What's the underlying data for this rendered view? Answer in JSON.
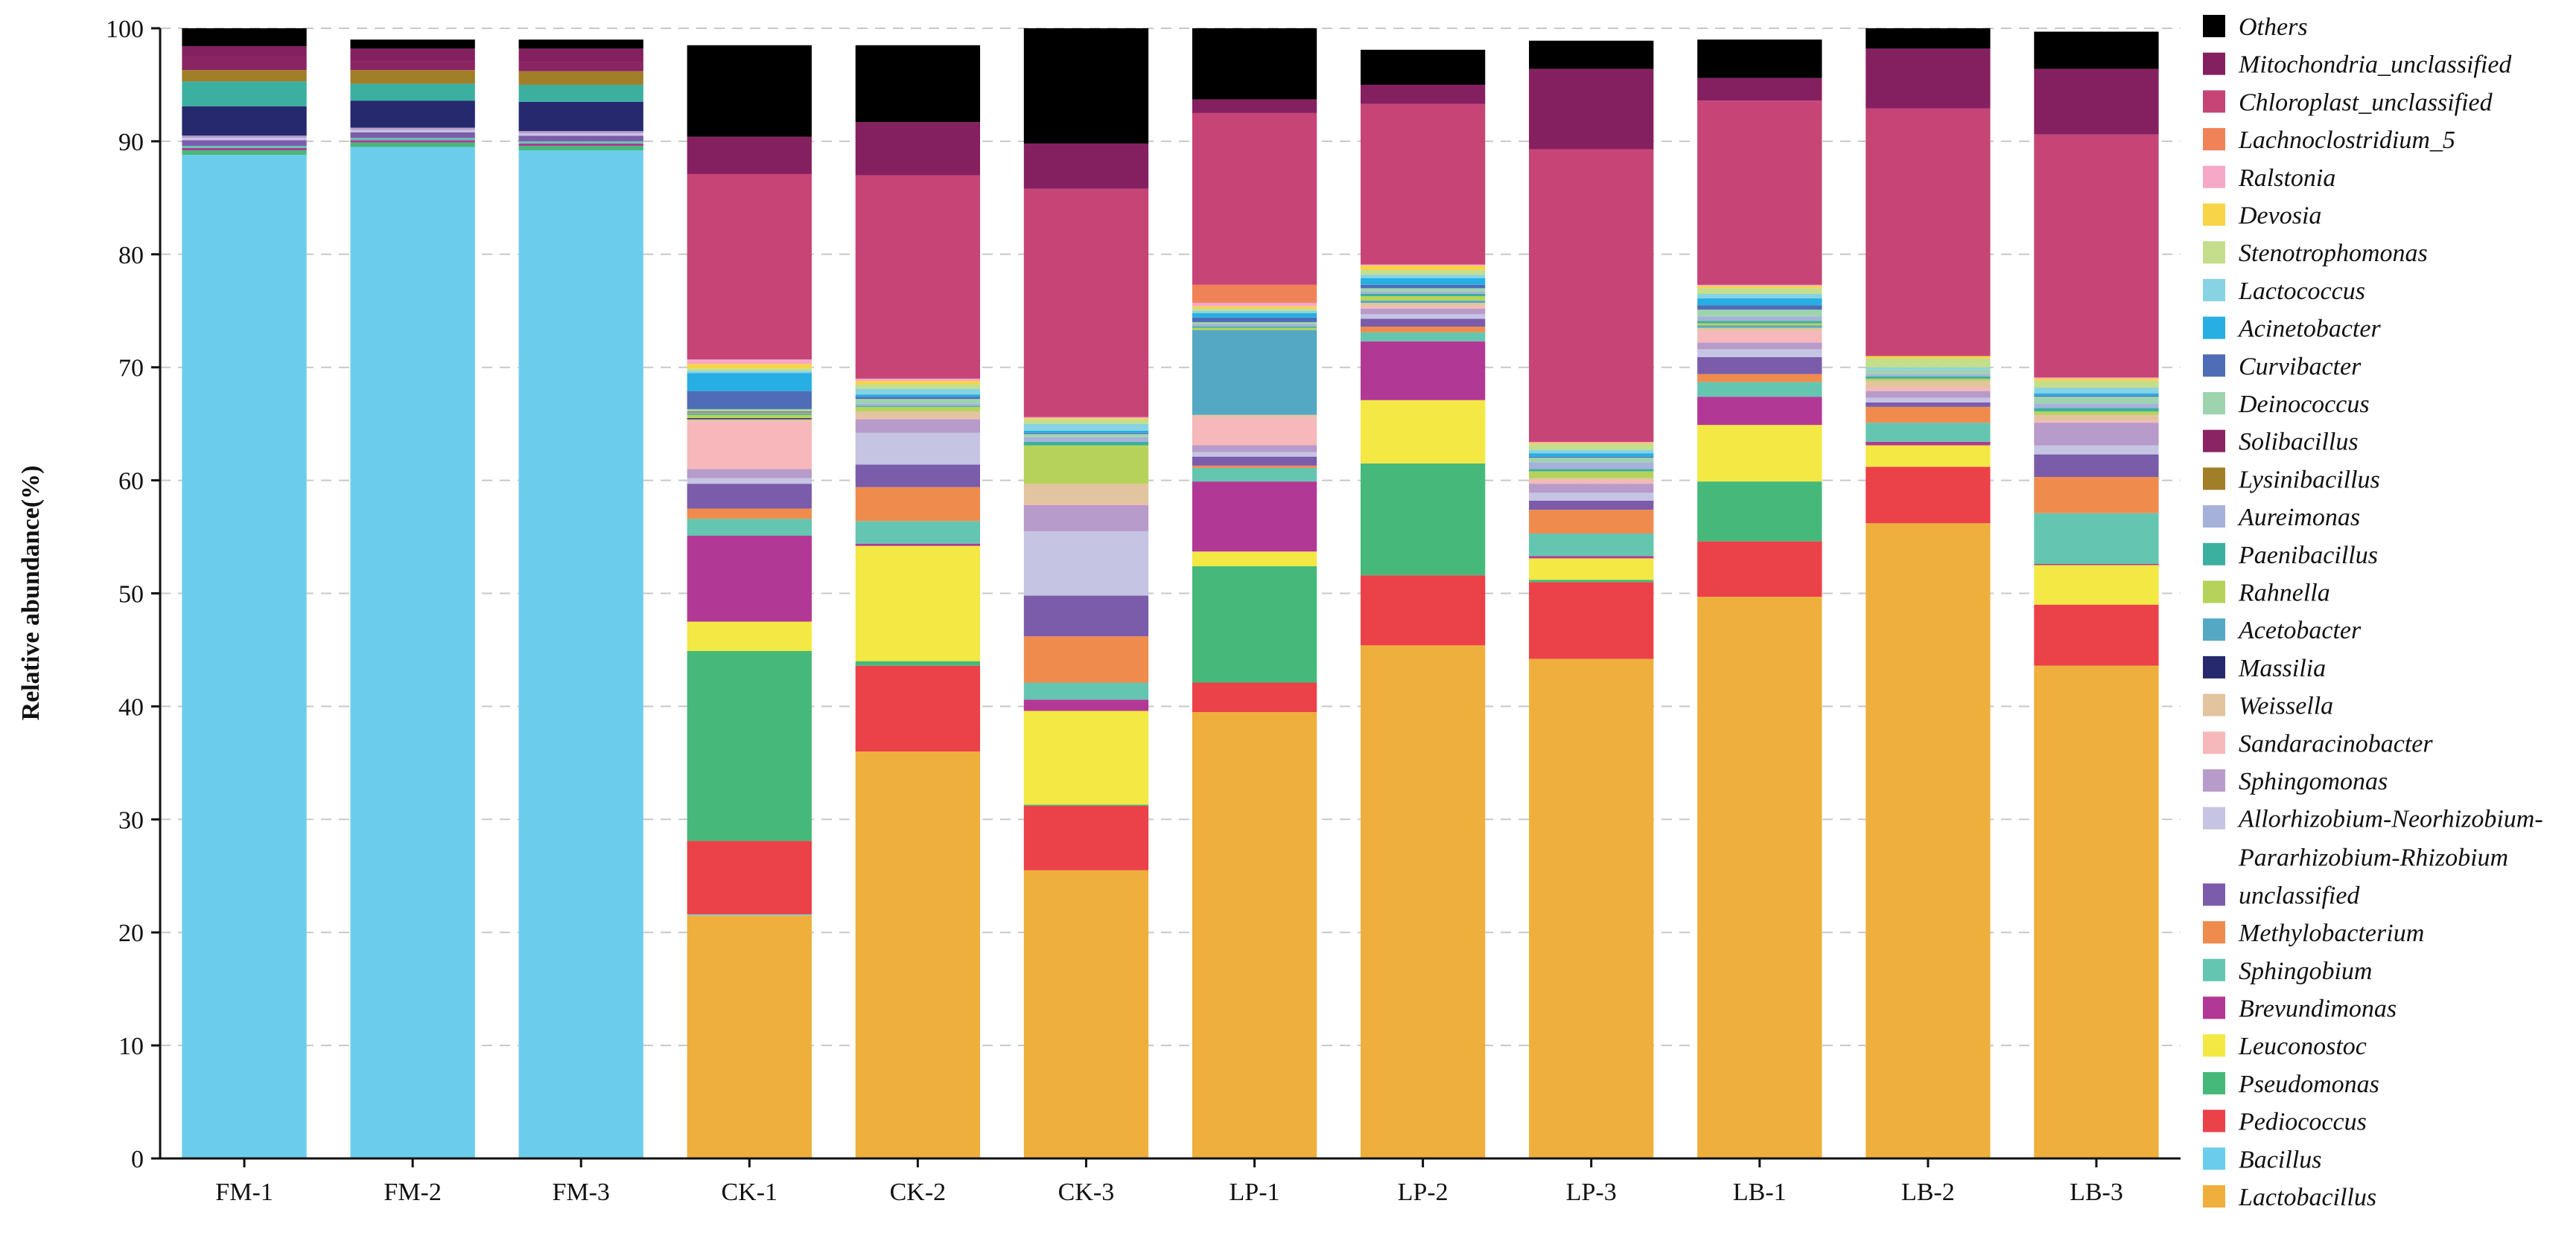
{
  "chart_data": {
    "type": "bar",
    "stacked": true,
    "title": "",
    "xlabel": "",
    "ylabel": "Relative abundance(%)",
    "ylim": [
      0,
      100
    ],
    "yticks": [
      0,
      10,
      20,
      30,
      40,
      50,
      60,
      70,
      80,
      90,
      100
    ],
    "categories": [
      "FM-1",
      "FM-2",
      "FM-3",
      "CK-1",
      "CK-2",
      "CK-3",
      "LP-1",
      "LP-2",
      "LP-3",
      "LB-1",
      "LB-2",
      "LB-3"
    ],
    "legend_position": "right",
    "series": [
      {
        "name": "Lactobacillus",
        "color": "#EEAF3C",
        "values": [
          0,
          0,
          0,
          21.5,
          36.0,
          25.5,
          39.5,
          45.4,
          44.2,
          49.7,
          56.2,
          43.6
        ]
      },
      {
        "name": "Bacillus",
        "color": "#6BCDEB",
        "values": [
          88.8,
          89.5,
          89.2,
          0.1,
          0,
          0,
          0,
          0,
          0,
          0,
          0,
          0
        ]
      },
      {
        "name": "Pediococcus",
        "color": "#EB4148",
        "values": [
          0,
          0,
          0,
          6.5,
          7.6,
          5.7,
          2.6,
          6.2,
          6.8,
          4.9,
          5.0,
          5.4
        ]
      },
      {
        "name": "Pseudomonas",
        "color": "#46B97A",
        "values": [
          0.4,
          0.4,
          0.4,
          16.8,
          0.4,
          0.1,
          10.3,
          9.9,
          0.2,
          5.3,
          0,
          0
        ]
      },
      {
        "name": "Leuconostoc",
        "color": "#F3E844",
        "values": [
          0,
          0,
          0,
          2.6,
          10.2,
          8.3,
          1.3,
          5.6,
          1.9,
          5.0,
          1.9,
          3.5
        ]
      },
      {
        "name": "Brevundimonas",
        "color": "#B23896",
        "values": [
          0.2,
          0.2,
          0.2,
          7.6,
          0.2,
          1.0,
          6.2,
          5.2,
          0.2,
          2.5,
          0.3,
          0.1
        ]
      },
      {
        "name": "Sphingobium",
        "color": "#64C6B0",
        "values": [
          0.2,
          0.2,
          0.2,
          1.5,
          2.0,
          1.5,
          1.2,
          0.8,
          2.0,
          1.3,
          1.7,
          4.5
        ]
      },
      {
        "name": "Methylobacterium",
        "color": "#F08B4E",
        "values": [
          0,
          0,
          0,
          0.9,
          3.0,
          4.1,
          0.2,
          0.5,
          2.1,
          0.7,
          1.4,
          3.2
        ]
      },
      {
        "name": "unclassified",
        "color": "#7B5CAB",
        "values": [
          0.5,
          0.5,
          0.5,
          2.2,
          2.0,
          3.6,
          0.8,
          0.7,
          0.8,
          1.5,
          0.4,
          2.0
        ]
      },
      {
        "name": "Allorhizobium-Neorhizobium-Pararhizobium-Rhizobium",
        "color": "#C6C4E3",
        "values": [
          0.2,
          0.2,
          0.2,
          0.5,
          2.8,
          5.7,
          0.4,
          0.4,
          0.7,
          0.7,
          0.4,
          0.8
        ]
      },
      {
        "name": "Sphingomonas",
        "color": "#B79BCA",
        "values": [
          0.2,
          0.2,
          0.2,
          0.8,
          1.2,
          2.3,
          0.6,
          0.5,
          0.8,
          0.6,
          0.6,
          2.0
        ]
      },
      {
        "name": "Sandaracinobacter",
        "color": "#F6B8BA",
        "values": [
          0,
          0,
          0,
          4.2,
          0.1,
          0.1,
          2.5,
          0.2,
          0.3,
          1.0,
          0.3,
          0.2
        ]
      },
      {
        "name": "Weissella",
        "color": "#E3C4A0",
        "values": [
          0,
          0,
          0,
          0.2,
          0.6,
          1.8,
          0.2,
          0.3,
          0.2,
          0.3,
          0.6,
          0.5
        ]
      },
      {
        "name": "Massilia",
        "color": "#26296E",
        "values": [
          2.6,
          2.4,
          2.6,
          0.1,
          0,
          0,
          0,
          0,
          0,
          0,
          0,
          0
        ]
      },
      {
        "name": "Acetobacter",
        "color": "#55A8C4",
        "values": [
          0,
          0,
          0,
          0,
          0,
          0,
          7.5,
          0.2,
          0,
          0.2,
          0,
          0
        ]
      },
      {
        "name": "Rahnella",
        "color": "#B5D35A",
        "values": [
          0,
          0,
          0,
          0.3,
          0.4,
          3.4,
          0.2,
          0.4,
          0.6,
          0.2,
          0.2,
          0.3
        ]
      },
      {
        "name": "Paenibacillus",
        "color": "#3BAFA0",
        "values": [
          2.2,
          1.5,
          1.5,
          0.1,
          0.1,
          0.3,
          0.1,
          0.2,
          0.2,
          0.2,
          0.2,
          0.3
        ]
      },
      {
        "name": "Aureimonas",
        "color": "#A6B1DA",
        "values": [
          0,
          0,
          0,
          0.1,
          0.2,
          0.4,
          0.2,
          0.2,
          0.6,
          0.4,
          0.2,
          0.4
        ]
      },
      {
        "name": "Lysinibacillus",
        "color": "#A17E28",
        "values": [
          1.0,
          1.2,
          1.2,
          0.1,
          0,
          0,
          0,
          0,
          0,
          0,
          0,
          0
        ]
      },
      {
        "name": "Solibacillus",
        "color": "#8A2463",
        "values": [
          1.2,
          0.8,
          0.8,
          0,
          0,
          0,
          0,
          0,
          0,
          0,
          0,
          0
        ]
      },
      {
        "name": "Deinococcus",
        "color": "#9ED4AD",
        "values": [
          0,
          0,
          0,
          0.2,
          0.4,
          0.3,
          0.2,
          0.3,
          0.4,
          0.6,
          0.4,
          0.6
        ]
      },
      {
        "name": "Curvibacter",
        "color": "#4E6DB6",
        "values": [
          0,
          0,
          0,
          1.6,
          0.2,
          0.1,
          0.4,
          0.3,
          0.1,
          0.4,
          0,
          0.1
        ]
      },
      {
        "name": "Acinetobacter",
        "color": "#27AEE3",
        "values": [
          0,
          0,
          0,
          1.6,
          0.2,
          0.2,
          0.4,
          0.6,
          0.3,
          0.6,
          0,
          0.2
        ]
      },
      {
        "name": "Lactococcus",
        "color": "#87D3E3",
        "values": [
          0,
          0,
          0,
          0.2,
          0.5,
          0.6,
          0.2,
          0.3,
          0.3,
          0.4,
          0.2,
          0.5
        ]
      },
      {
        "name": "Stenotrophomonas",
        "color": "#C4DE8C",
        "values": [
          0,
          0,
          0,
          0.2,
          0.4,
          0.4,
          0.2,
          0.4,
          0.5,
          0.5,
          0.8,
          0.6
        ]
      },
      {
        "name": "Devosia",
        "color": "#F7D448",
        "values": [
          0,
          0,
          0,
          0.4,
          0.3,
          0.1,
          0.2,
          0.4,
          0.1,
          0.2,
          0.2,
          0.2
        ]
      },
      {
        "name": "Ralstonia",
        "color": "#F5A8C8",
        "values": [
          0,
          0,
          0,
          0.4,
          0.2,
          0.1,
          0.3,
          0.1,
          0.1,
          0.1,
          0,
          0.1
        ]
      },
      {
        "name": "Lachnoclostridium_5",
        "color": "#F08258",
        "values": [
          0,
          0,
          0,
          0,
          0,
          0,
          1.6,
          0,
          0,
          0,
          0,
          0
        ]
      },
      {
        "name": "Chloroplast_unclassified",
        "color": "#C64476",
        "values": [
          0,
          0,
          0,
          16.4,
          18.0,
          20.2,
          15.2,
          14.2,
          25.9,
          16.3,
          21.9,
          21.5
        ]
      },
      {
        "name": "Mitochondria_unclassified",
        "color": "#852060",
        "values": [
          0.9,
          1.1,
          1.2,
          3.3,
          4.7,
          4.0,
          1.2,
          1.7,
          7.1,
          2.0,
          5.3,
          5.8
        ]
      },
      {
        "name": "Others",
        "color": "#000000",
        "values": [
          1.8,
          0.8,
          0.8,
          8.1,
          6.8,
          10.2,
          6.4,
          3.1,
          2.5,
          3.4,
          1.8,
          3.3
        ]
      }
    ]
  }
}
